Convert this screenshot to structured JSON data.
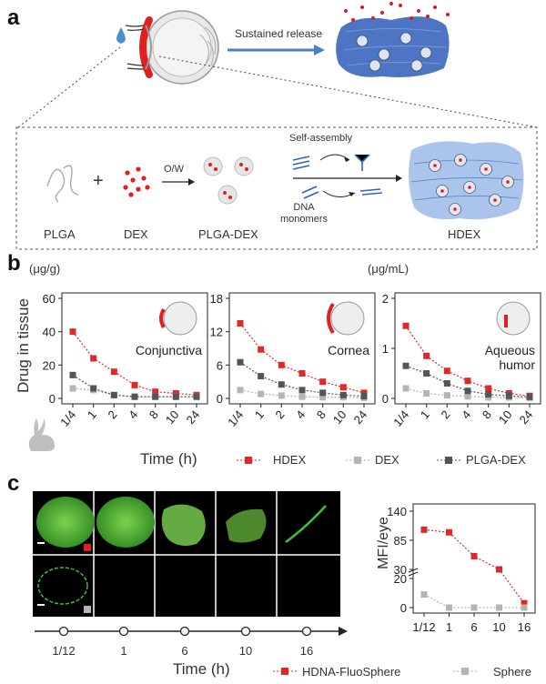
{
  "panel_a": {
    "letter": "a",
    "sustained_release": "Sustained release",
    "self_assembly": "Self-assembly",
    "ow": "O/W",
    "dna_monomers": "DNA monomers",
    "dna_line1": "DNA",
    "dna_line2": "monomers",
    "labels": {
      "plga": "PLGA",
      "dex": "DEX",
      "plga_dex": "PLGA-DEX",
      "hdex": "HDEX"
    },
    "colors": {
      "red": "#e02020",
      "blue": "#3060c0",
      "arrow_blue": "#4a7fd0"
    }
  },
  "panel_b": {
    "letter": "b",
    "unit_left": "(μg/g)",
    "unit_right": "(μg/mL)",
    "ylabel": "Drug in tissue",
    "xlabel": "Time (h)",
    "legend": [
      {
        "name": "HDEX",
        "color": "#e02828"
      },
      {
        "name": "DEX",
        "color": "#b4b4b4"
      },
      {
        "name": "PLGA-DEX",
        "color": "#555555"
      }
    ]
  },
  "panel_c": {
    "letter": "c",
    "timeline_labels": [
      "1/12",
      "1",
      "6",
      "10",
      "16"
    ],
    "xlabel": "Time (h)",
    "ylabel": "MFI/eye",
    "legend": [
      {
        "name": "HDNA-FluoSphere",
        "color": "#e02828"
      },
      {
        "name": "Sphere",
        "color": "#b4b4b4"
      }
    ]
  },
  "chart_data": [
    {
      "type": "line",
      "panel": "b-conjunctiva",
      "annotation": "Conjunctiva",
      "categories": [
        "1/4",
        "1",
        "2",
        "4",
        "8",
        "10",
        "24"
      ],
      "ylim": [
        0,
        60
      ],
      "yticks": [
        0,
        20,
        40,
        60
      ],
      "series": [
        {
          "name": "HDEX",
          "values": [
            40,
            24,
            16,
            8,
            4,
            3,
            2
          ]
        },
        {
          "name": "DEX",
          "values": [
            6,
            5,
            2,
            1,
            1,
            1,
            1
          ]
        },
        {
          "name": "PLGA-DEX",
          "values": [
            14,
            6,
            2,
            1,
            1,
            1,
            1
          ]
        }
      ]
    },
    {
      "type": "line",
      "panel": "b-cornea",
      "annotation": "Cornea",
      "categories": [
        "1/4",
        "1",
        "2",
        "4",
        "8",
        "10",
        "24"
      ],
      "ylim": [
        0,
        18
      ],
      "yticks": [
        0,
        6,
        12,
        18
      ],
      "series": [
        {
          "name": "HDEX",
          "values": [
            13.5,
            8.8,
            6,
            4.5,
            3,
            2,
            1
          ]
        },
        {
          "name": "DEX",
          "values": [
            1.5,
            0.8,
            0.5,
            0.3,
            0.2,
            0.2,
            0.1
          ]
        },
        {
          "name": "PLGA-DEX",
          "values": [
            6.5,
            4,
            2.5,
            1.5,
            1,
            0.6,
            0.4
          ]
        }
      ]
    },
    {
      "type": "line",
      "panel": "b-aqueous",
      "annotation": "Aqueous humor",
      "annotation_lines": [
        "Aqueous",
        "humor"
      ],
      "categories": [
        "1/4",
        "1",
        "2",
        "4",
        "8",
        "10",
        "24"
      ],
      "ylim": [
        0,
        2
      ],
      "yticks": [
        0,
        1,
        2
      ],
      "series": [
        {
          "name": "HDEX",
          "values": [
            1.45,
            0.85,
            0.55,
            0.35,
            0.2,
            0.1,
            0.05
          ]
        },
        {
          "name": "DEX",
          "values": [
            0.2,
            0.1,
            0.06,
            0.04,
            0.02,
            0.02,
            0.01
          ]
        },
        {
          "name": "PLGA-DEX",
          "values": [
            0.65,
            0.5,
            0.3,
            0.15,
            0.08,
            0.05,
            0.03
          ]
        }
      ]
    },
    {
      "type": "line",
      "panel": "c-mfi",
      "categories": [
        "1/12",
        "1",
        "6",
        "10",
        "16"
      ],
      "yticks_top": [
        30,
        85,
        140
      ],
      "yticks_bottom": [
        0,
        20
      ],
      "series": [
        {
          "name": "HDNA-FluoSphere",
          "values": [
            105,
            100,
            55,
            30,
            3
          ]
        },
        {
          "name": "Sphere",
          "values": [
            9,
            0,
            0,
            0,
            0
          ]
        }
      ]
    }
  ]
}
